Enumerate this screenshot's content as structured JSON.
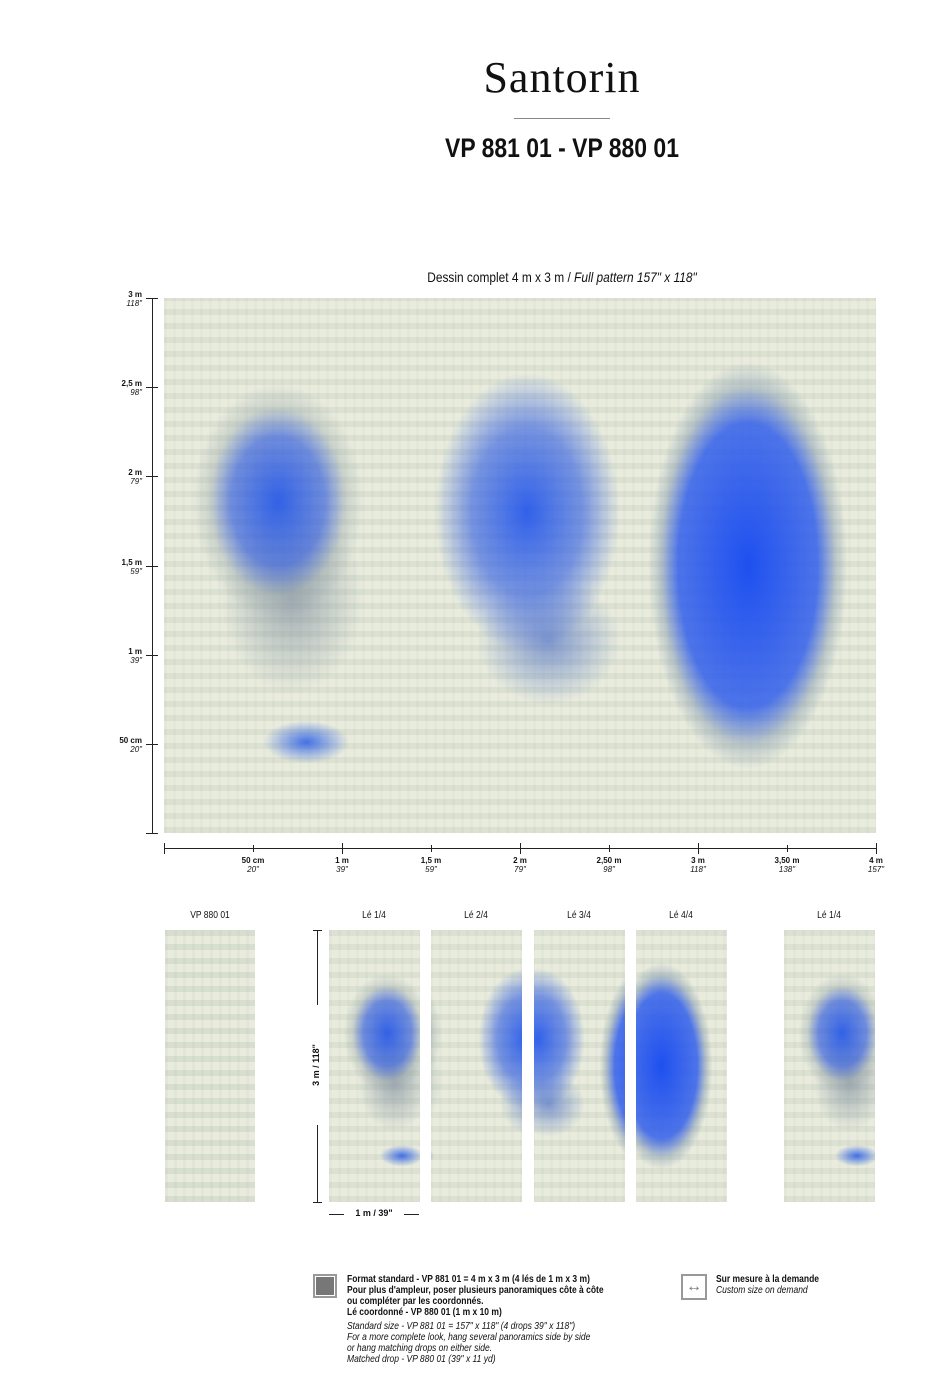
{
  "header": {
    "title": "Santorin",
    "reference": "VP 881 01 - VP 880 01"
  },
  "caption": {
    "french": "Dessin complet 4 m x 3 m / ",
    "english": "Full pattern 157\" x 118\""
  },
  "vertical_axis": [
    {
      "m": "3 m",
      "in": "118\""
    },
    {
      "m": "2,5 m",
      "in": "98\""
    },
    {
      "m": "2 m",
      "in": "79\""
    },
    {
      "m": "1,5 m",
      "in": "59\""
    },
    {
      "m": "1 m",
      "in": "39\""
    },
    {
      "m": "50 cm",
      "in": "20\""
    }
  ],
  "horizontal_axis": [
    {
      "m": "50 cm",
      "in": "20\""
    },
    {
      "m": "1 m",
      "in": "39\""
    },
    {
      "m": "1,5 m",
      "in": "59\""
    },
    {
      "m": "2 m",
      "in": "79\""
    },
    {
      "m": "2,50 m",
      "in": "98\""
    },
    {
      "m": "3 m",
      "in": "118\""
    },
    {
      "m": "3,50 m",
      "in": "138\""
    },
    {
      "m": "4 m",
      "in": "157\""
    }
  ],
  "panels": {
    "coordinated": "VP 880 01",
    "drops": [
      "Lé 1/4",
      "Lé 2/4",
      "Lé 3/4",
      "Lé 4/4",
      "Lé 1/4"
    ],
    "height_label": "3 m / 118\"",
    "width_label": "1 m / 39\""
  },
  "colors": {
    "accent_blue": "#2f5fe8",
    "background": "#e6e9d9"
  },
  "legend": {
    "standard": {
      "icon": "filled-square-icon",
      "lines": [
        "Format standard - VP 881 01 = 4 m x 3 m (4 lés de 1 m x 3 m)",
        "Pour plus d'ampleur, poser plusieurs panoramiques côte à côte",
        "ou compléter par les coordonnés.",
        "Lé coordonné - VP 880 01 (1 m x 10 m)"
      ],
      "english": [
        "Standard size - VP 881 01 = 157\" x 118\" (4 drops 39\" x 118\")",
        "For a more complete look, hang several panoramics side by side",
        "or hang matching drops on either side.",
        "Matched drop - VP 880 01 (39\" x 11 yd)"
      ]
    },
    "custom": {
      "icon": "resize-arrows-icon",
      "french": "Sur mesure à la demande",
      "english": "Custom size on demand"
    }
  }
}
